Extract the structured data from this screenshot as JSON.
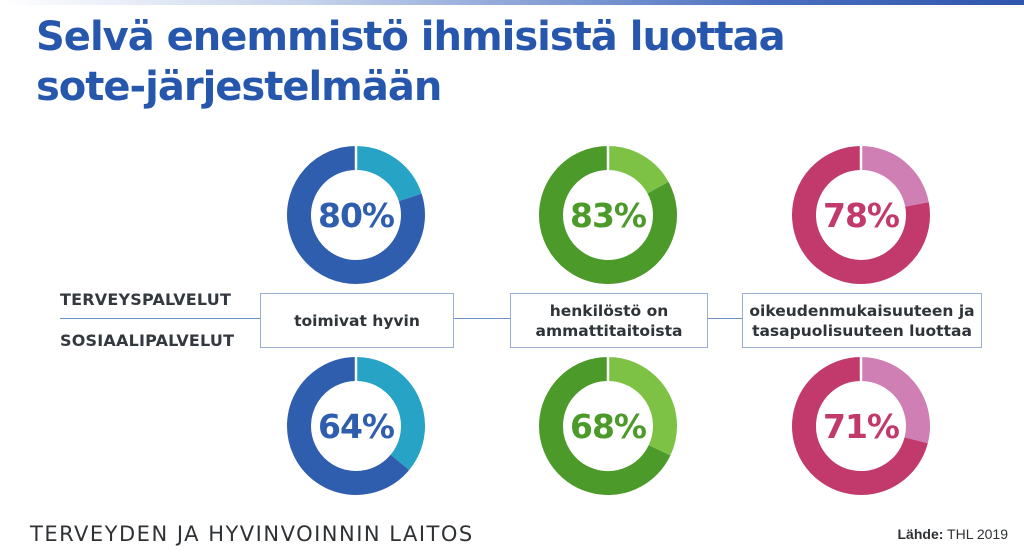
{
  "title_lines": [
    "Selvä enemmistö ihmisistä luottaa",
    "sote-järjestelmään"
  ],
  "row_labels": [
    "TERVEYSPALVELUT",
    "SOSIAALIPALVELUT"
  ],
  "category_labels": [
    [
      "toimivat hyvin"
    ],
    [
      "henkilöstö on",
      "ammattitaitoista"
    ],
    [
      "oikeudenmukaisuuteen ja",
      "tasapuolisuuteen luottaa"
    ]
  ],
  "footer": "TERVEYDEN JA HYVINVOINNIN LAITOS",
  "source": {
    "label": "Lähde:",
    "value": "THL 2019"
  },
  "colors": {
    "title": "#2757ad",
    "blue_main": "#2f5eaf",
    "blue_rest": "#27a3c6",
    "green_main": "#4c9a2a",
    "green_rest": "#7dc244",
    "pink_main": "#c23a6c",
    "pink_rest": "#cf7fb4"
  },
  "chart_data": {
    "type": "donut",
    "categories": [
      "toimivat hyvin",
      "henkilöstö on ammattitaitoista",
      "oikeudenmukaisuuteen ja tasapuolisuuteen luottaa"
    ],
    "series": [
      {
        "name": "TERVEYSPALVELUT",
        "values": [
          80,
          83,
          78
        ],
        "labels": [
          "80%",
          "83%",
          "78%"
        ]
      },
      {
        "name": "SOSIAALIPALVELUT",
        "values": [
          64,
          68,
          71
        ],
        "labels": [
          "64%",
          "68%",
          "71%"
        ]
      }
    ],
    "unit": "%",
    "max": 100
  }
}
